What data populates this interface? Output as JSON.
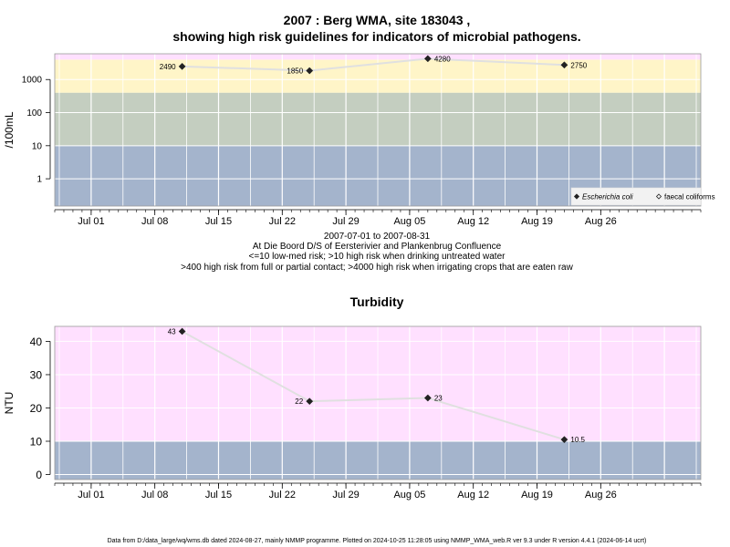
{
  "title_line1": "2007 : Berg WMA, site 183043 ,",
  "title_line2": "showing high risk guidelines for indicators of microbial pathogens.",
  "caption": [
    "2007-07-01 to 2007-08-31",
    "At Die Boord D/S of Eersterivier and Plankenbrug Confluence",
    "<=10 low-med risk; >10 high risk when drinking untreated water",
    ">400 high risk from full or partial contact; >4000 high risk when irrigating crops that are eaten raw"
  ],
  "footer": "Data from D:/data_large/wq/wms.db dated 2024-08-27, mainly NMMP programme. Plotted on 2024-10-25 11:28:05 using NMMP_WMA_web.R ver 9.3 under R version 4.4.1 (2024-06-14 ucrt)",
  "colors": {
    "pink": "#ffe0ff",
    "yellow": "#fff5c8",
    "olive": "#c4cec0",
    "blue": "#a4b4cc",
    "grid": "#ffffff",
    "line": "#e0e0e0",
    "point": "#222222"
  },
  "chart_data": [
    {
      "type": "scatter",
      "name": "microbial",
      "ylabel": "/100mL",
      "yscale": "log",
      "ylim": [
        0.15,
        6000
      ],
      "yticks": [
        1,
        10,
        100,
        1000
      ],
      "ytick_labels": [
        "1",
        "10",
        "100",
        "1000"
      ],
      "xlim": [
        "2007-06-27",
        "2007-09-06"
      ],
      "xticks": [
        "2007-07-01",
        "2007-07-08",
        "2007-07-15",
        "2007-07-22",
        "2007-07-29",
        "2007-08-05",
        "2007-08-12",
        "2007-08-19",
        "2007-08-26"
      ],
      "xtick_labels": [
        "Jul 01",
        "Jul 08",
        "Jul 15",
        "Jul 22",
        "Jul 29",
        "Aug 05",
        "Aug 12",
        "Aug 19",
        "Aug 26"
      ],
      "bands": [
        {
          "from": 0.15,
          "to": 10,
          "color": "#a4b4cc"
        },
        {
          "from": 10,
          "to": 400,
          "color": "#c4cec0"
        },
        {
          "from": 400,
          "to": 4000,
          "color": "#fff5c8"
        },
        {
          "from": 4000,
          "to": 6000,
          "color": "#ffe0ff"
        }
      ],
      "legend": {
        "position": "bottom-right",
        "entries": [
          {
            "label": "Escherichia coli",
            "marker": "filled-diamond",
            "italic": true
          },
          {
            "label": "faecal coliforms",
            "marker": "open-diamond",
            "italic": false
          }
        ]
      },
      "series": [
        {
          "name": "Escherichia coli",
          "x": [
            "2007-07-11",
            "2007-07-25",
            "2007-08-07",
            "2007-08-22"
          ],
          "y": [
            2490,
            1850,
            4280,
            2750
          ],
          "labels": [
            "2490",
            "1850",
            "4280",
            "2750"
          ],
          "label_side": [
            "left",
            "left",
            "right",
            "right"
          ]
        }
      ],
      "grid": true
    },
    {
      "type": "scatter",
      "name": "turbidity",
      "title": "Turbidity",
      "ylabel": "NTU",
      "yscale": "linear",
      "ylim": [
        -1.5,
        44.5
      ],
      "yticks": [
        0,
        10,
        20,
        30,
        40
      ],
      "ytick_labels": [
        "0",
        "10",
        "20",
        "30",
        "40"
      ],
      "xlim": [
        "2007-06-27",
        "2007-09-06"
      ],
      "xticks": [
        "2007-07-01",
        "2007-07-08",
        "2007-07-15",
        "2007-07-22",
        "2007-07-29",
        "2007-08-05",
        "2007-08-12",
        "2007-08-19",
        "2007-08-26"
      ],
      "xtick_labels": [
        "Jul 01",
        "Jul 08",
        "Jul 15",
        "Jul 22",
        "Jul 29",
        "Aug 05",
        "Aug 12",
        "Aug 19",
        "Aug 26"
      ],
      "bands": [
        {
          "from": -1.5,
          "to": 10,
          "color": "#a4b4cc"
        },
        {
          "from": 10,
          "to": 44.5,
          "color": "#ffe0ff"
        }
      ],
      "series": [
        {
          "x": [
            "2007-07-11",
            "2007-07-25",
            "2007-08-07",
            "2007-08-22"
          ],
          "y": [
            43,
            22,
            23,
            10.5
          ],
          "labels": [
            "43",
            "22",
            "23",
            "10.5"
          ],
          "label_side": [
            "left",
            "left",
            "right",
            "right"
          ]
        }
      ],
      "grid": true
    }
  ]
}
